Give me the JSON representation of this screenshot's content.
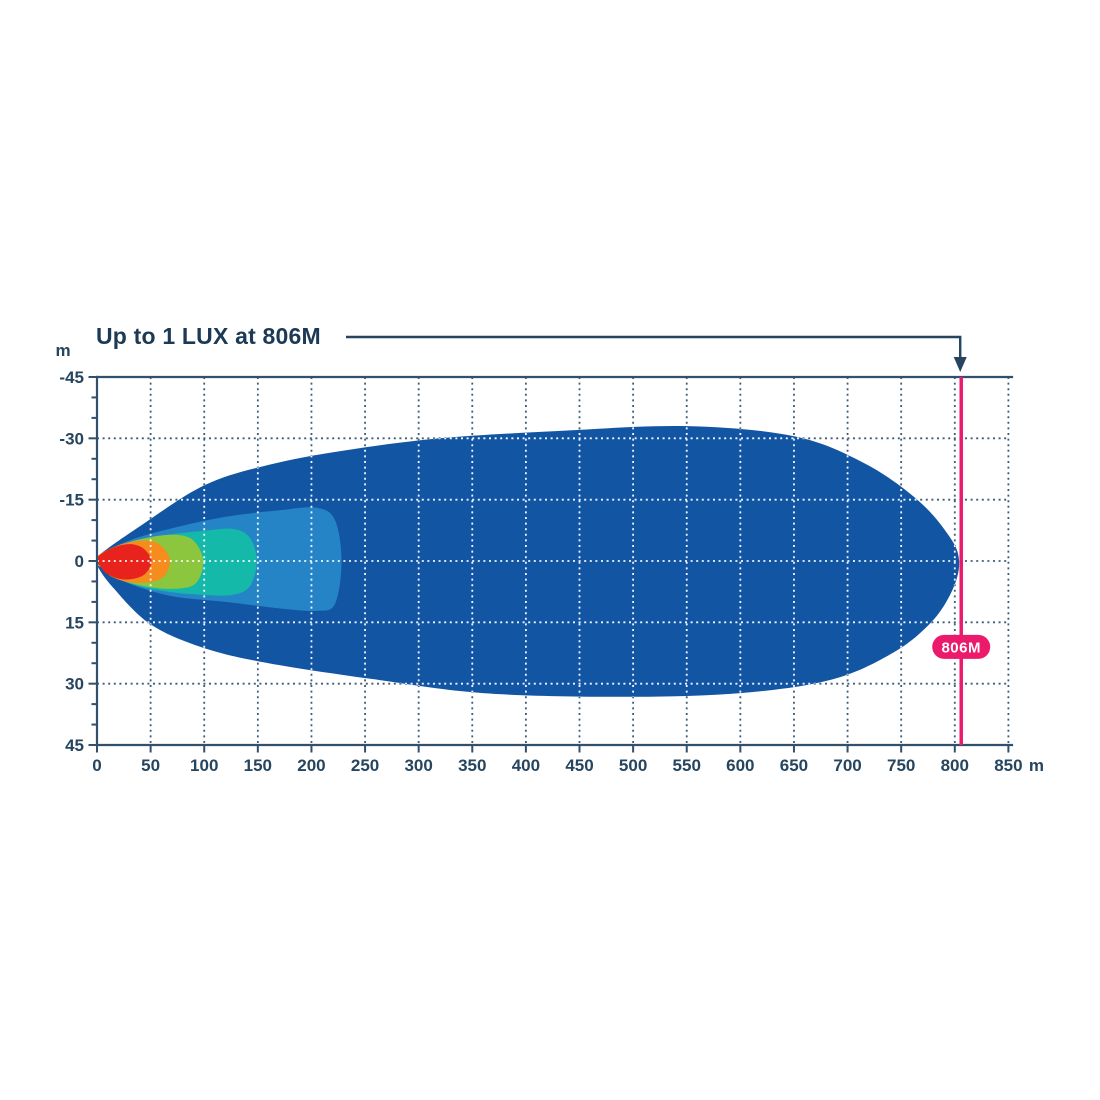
{
  "page": {
    "background": "#ffffff"
  },
  "colors": {
    "title_text": "#1c3a55",
    "axis_line": "#31506b",
    "tick_text": "#26455f",
    "grid_dark": "#3f5d78",
    "grid_light": "#ffffff",
    "marker_pink": "#ec1a6b",
    "badge_text": "#ffffff",
    "arrow": "#24445f"
  },
  "chart_data": {
    "type": "area",
    "title": "Up to 1 LUX at 806M",
    "x_axis": {
      "label": "m",
      "min": 0,
      "max": 850,
      "tick_step": 50
    },
    "y_axis": {
      "label": "m",
      "min": -45,
      "max": 45,
      "tick_step": 15,
      "minor_tick_step": 5
    },
    "grid": {
      "style": "dotted",
      "x_step": 50,
      "y_step": 15,
      "x_lines": [
        50,
        100,
        150,
        200,
        250,
        300,
        350,
        400,
        450,
        500,
        550,
        600,
        650,
        700,
        750,
        800,
        850
      ],
      "y_lines": [
        -30,
        -15,
        0,
        15,
        30
      ]
    },
    "marker": {
      "value_m": 806,
      "label": "806M",
      "badge_y_m": 21
    },
    "annotation": {
      "text": "Up to 1 LUX at 806M",
      "arrow_points_to_m": 806
    },
    "contours": [
      {
        "name": "zone-1-outermost",
        "color": "#1155a3",
        "points": [
          [
            0,
            -1
          ],
          [
            40,
            -8.5
          ],
          [
            100,
            -18.5
          ],
          [
            160,
            -23.5
          ],
          [
            230,
            -27
          ],
          [
            320,
            -30
          ],
          [
            430,
            -31.8
          ],
          [
            550,
            -33
          ],
          [
            650,
            -30.5
          ],
          [
            715,
            -24
          ],
          [
            765,
            -15
          ],
          [
            795,
            -6
          ],
          [
            804,
            0
          ],
          [
            798,
            7
          ],
          [
            778,
            15
          ],
          [
            742,
            22.5
          ],
          [
            685,
            29
          ],
          [
            600,
            32.3
          ],
          [
            490,
            33.2
          ],
          [
            360,
            32.3
          ],
          [
            255,
            28.8
          ],
          [
            160,
            25
          ],
          [
            100,
            21.3
          ],
          [
            50,
            15.5
          ],
          [
            15,
            6.5
          ],
          [
            0,
            1
          ]
        ]
      },
      {
        "name": "zone-2",
        "color": "#2584c6",
        "points": [
          [
            0,
            -1
          ],
          [
            30,
            -5
          ],
          [
            70,
            -8
          ],
          [
            120,
            -10.8
          ],
          [
            170,
            -12.4
          ],
          [
            205,
            -13
          ],
          [
            222,
            -10
          ],
          [
            228,
            0
          ],
          [
            222,
            10.5
          ],
          [
            205,
            12.2
          ],
          [
            170,
            11.6
          ],
          [
            120,
            10
          ],
          [
            70,
            8.6
          ],
          [
            30,
            5.5
          ],
          [
            8,
            2
          ],
          [
            0,
            1
          ]
        ]
      },
      {
        "name": "zone-3",
        "color": "#14b9a9",
        "points": [
          [
            0,
            -1
          ],
          [
            25,
            -4.2
          ],
          [
            60,
            -6.2
          ],
          [
            100,
            -7.4
          ],
          [
            128,
            -7.8
          ],
          [
            143,
            -5.5
          ],
          [
            149,
            0
          ],
          [
            143,
            6
          ],
          [
            128,
            8.2
          ],
          [
            100,
            8.3
          ],
          [
            60,
            7.3
          ],
          [
            25,
            5
          ],
          [
            6,
            1.8
          ],
          [
            0,
            1
          ]
        ]
      },
      {
        "name": "zone-4",
        "color": "#8cc63e",
        "points": [
          [
            0,
            -1
          ],
          [
            18,
            -3.6
          ],
          [
            45,
            -5.6
          ],
          [
            72,
            -6.4
          ],
          [
            90,
            -5
          ],
          [
            99,
            0
          ],
          [
            92,
            5.5
          ],
          [
            72,
            6.8
          ],
          [
            45,
            6.2
          ],
          [
            18,
            4.2
          ],
          [
            4,
            1.4
          ],
          [
            0,
            1
          ]
        ]
      },
      {
        "name": "zone-5",
        "color": "#f68b1e",
        "points": [
          [
            0,
            -1
          ],
          [
            12,
            -3
          ],
          [
            30,
            -4.6
          ],
          [
            50,
            -4.9
          ],
          [
            62,
            -3.2
          ],
          [
            68,
            0
          ],
          [
            63,
            3.6
          ],
          [
            50,
            5.1
          ],
          [
            30,
            5.2
          ],
          [
            12,
            3.6
          ],
          [
            3,
            1.2
          ],
          [
            0,
            1
          ]
        ]
      },
      {
        "name": "zone-6-hotspot",
        "color": "#e8231e",
        "points": [
          [
            0,
            -0.8
          ],
          [
            8,
            -2.4
          ],
          [
            20,
            -3.7
          ],
          [
            33,
            -4.1
          ],
          [
            44,
            -2.9
          ],
          [
            51,
            0
          ],
          [
            45,
            3.1
          ],
          [
            33,
            4.4
          ],
          [
            20,
            4.3
          ],
          [
            8,
            2.9
          ],
          [
            2,
            0.9
          ],
          [
            0,
            0.8
          ]
        ]
      }
    ]
  }
}
